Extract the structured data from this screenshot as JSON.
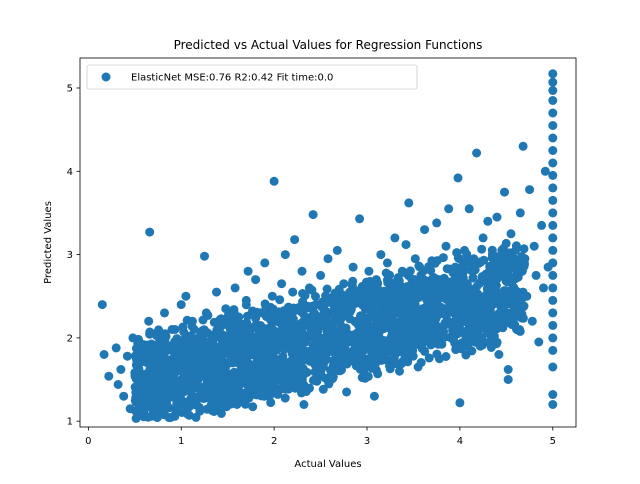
{
  "chart_data": {
    "type": "scatter",
    "title": "Predicted vs Actual Values for Regression Functions",
    "xlabel": "Actual Values",
    "ylabel": "Predicted Values",
    "xlim": [
      -0.09,
      5.25
    ],
    "ylim": [
      0.93,
      5.36
    ],
    "xticks": [
      0,
      1,
      2,
      3,
      4,
      5
    ],
    "yticks": [
      1,
      2,
      3,
      4,
      5
    ],
    "grid": false,
    "legend_position": "upper-left",
    "series": [
      {
        "name": "ElasticNet MSE:0.76 R2:0.42 Fit time:0.0",
        "color": "#1f77b4",
        "points": [
          [
            0.15,
            2.4
          ],
          [
            0.17,
            1.8
          ],
          [
            0.22,
            1.54
          ],
          [
            0.3,
            1.88
          ],
          [
            0.32,
            1.44
          ],
          [
            0.35,
            1.62
          ],
          [
            0.38,
            1.3
          ],
          [
            0.42,
            1.78
          ],
          [
            0.45,
            1.15
          ],
          [
            0.48,
            2.0
          ],
          [
            0.52,
            1.55
          ],
          [
            0.55,
            1.22
          ],
          [
            0.58,
            1.9
          ],
          [
            0.6,
            1.1
          ],
          [
            0.63,
            1.45
          ],
          [
            0.65,
            2.2
          ],
          [
            0.66,
            3.27
          ],
          [
            0.68,
            1.7
          ],
          [
            0.7,
            1.1
          ],
          [
            0.72,
            2.05
          ],
          [
            0.75,
            1.35
          ],
          [
            0.78,
            1.6
          ],
          [
            0.8,
            1.12
          ],
          [
            0.82,
            2.3
          ],
          [
            0.85,
            1.85
          ],
          [
            0.88,
            1.5
          ],
          [
            0.9,
            2.1
          ],
          [
            0.92,
            1.3
          ],
          [
            0.95,
            1.95
          ],
          [
            0.98,
            1.72
          ],
          [
            1.0,
            2.4
          ],
          [
            1.02,
            1.58
          ],
          [
            1.05,
            1.2
          ],
          [
            1.05,
            2.5
          ],
          [
            1.1,
            1.85
          ],
          [
            1.12,
            2.2
          ],
          [
            1.15,
            1.42
          ],
          [
            1.18,
            2.0
          ],
          [
            1.2,
            1.12
          ],
          [
            1.22,
            1.75
          ],
          [
            1.25,
            2.98
          ],
          [
            1.27,
            2.3
          ],
          [
            1.3,
            1.6
          ],
          [
            1.33,
            1.95
          ],
          [
            1.35,
            1.25
          ],
          [
            1.38,
            2.55
          ],
          [
            1.4,
            2.1
          ],
          [
            1.42,
            1.85
          ],
          [
            1.45,
            1.5
          ],
          [
            1.48,
            2.35
          ],
          [
            1.5,
            1.35
          ],
          [
            1.52,
            2.0
          ],
          [
            1.55,
            1.7
          ],
          [
            1.58,
            2.6
          ],
          [
            1.6,
            1.2
          ],
          [
            1.62,
            2.25
          ],
          [
            1.65,
            1.9
          ],
          [
            1.68,
            1.55
          ],
          [
            1.7,
            2.45
          ],
          [
            1.72,
            2.8
          ],
          [
            1.75,
            2.1
          ],
          [
            1.78,
            1.4
          ],
          [
            1.8,
            2.7
          ],
          [
            1.82,
            1.85
          ],
          [
            1.85,
            2.3
          ],
          [
            1.88,
            1.6
          ],
          [
            1.9,
            2.9
          ],
          [
            1.92,
            2.05
          ],
          [
            1.95,
            1.3
          ],
          [
            1.98,
            2.5
          ],
          [
            2.0,
            1.75
          ],
          [
            2.0,
            3.88
          ],
          [
            2.05,
            2.2
          ],
          [
            2.08,
            2.65
          ],
          [
            2.1,
            1.45
          ],
          [
            2.12,
            3.0
          ],
          [
            2.15,
            2.1
          ],
          [
            2.18,
            1.9
          ],
          [
            2.2,
            2.55
          ],
          [
            2.22,
            3.18
          ],
          [
            2.25,
            1.6
          ],
          [
            2.28,
            2.35
          ],
          [
            2.3,
            2.8
          ],
          [
            2.32,
            1.2
          ],
          [
            2.35,
            2.15
          ],
          [
            2.38,
            2.6
          ],
          [
            2.4,
            1.85
          ],
          [
            2.42,
            3.48
          ],
          [
            2.45,
            2.4
          ],
          [
            2.48,
            2.0
          ],
          [
            2.5,
            2.75
          ],
          [
            2.52,
            1.7
          ],
          [
            2.55,
            2.25
          ],
          [
            2.58,
            2.95
          ],
          [
            2.6,
            2.1
          ],
          [
            2.62,
            1.55
          ],
          [
            2.65,
            2.5
          ],
          [
            2.68,
            3.05
          ],
          [
            2.7,
            2.3
          ],
          [
            2.72,
            1.9
          ],
          [
            2.75,
            2.65
          ],
          [
            2.78,
            1.35
          ],
          [
            2.8,
            2.45
          ],
          [
            2.82,
            2.0
          ],
          [
            2.85,
            2.85
          ],
          [
            2.88,
            2.2
          ],
          [
            2.9,
            1.75
          ],
          [
            2.92,
            3.43
          ],
          [
            2.95,
            2.6
          ],
          [
            2.98,
            2.35
          ],
          [
            3.0,
            1.95
          ],
          [
            3.02,
            2.8
          ],
          [
            3.05,
            2.45
          ],
          [
            3.08,
            1.3
          ],
          [
            3.1,
            2.7
          ],
          [
            3.12,
            2.15
          ],
          [
            3.15,
            3.0
          ],
          [
            3.18,
            2.55
          ],
          [
            3.2,
            1.8
          ],
          [
            3.22,
            2.9
          ],
          [
            3.25,
            2.35
          ],
          [
            3.28,
            2.1
          ],
          [
            3.3,
            3.2
          ],
          [
            3.32,
            2.65
          ],
          [
            3.35,
            1.6
          ],
          [
            3.38,
            2.8
          ],
          [
            3.4,
            2.4
          ],
          [
            3.42,
            3.12
          ],
          [
            3.45,
            3.62
          ],
          [
            3.48,
            2.55
          ],
          [
            3.5,
            2.2
          ],
          [
            3.52,
            2.95
          ],
          [
            3.55,
            1.65
          ],
          [
            3.58,
            2.75
          ],
          [
            3.6,
            2.35
          ],
          [
            3.62,
            3.3
          ],
          [
            3.65,
            2.6
          ],
          [
            3.68,
            2.05
          ],
          [
            3.7,
            2.9
          ],
          [
            3.72,
            2.45
          ],
          [
            3.75,
            3.38
          ],
          [
            3.78,
            1.75
          ],
          [
            3.8,
            2.7
          ],
          [
            3.82,
            2.3
          ],
          [
            3.85,
            3.1
          ],
          [
            3.88,
            3.55
          ],
          [
            3.9,
            2.55
          ],
          [
            3.92,
            2.0
          ],
          [
            3.95,
            2.85
          ],
          [
            3.98,
            3.92
          ],
          [
            4.0,
            1.22
          ],
          [
            4.02,
            2.4
          ],
          [
            4.05,
            3.05
          ],
          [
            4.08,
            2.65
          ],
          [
            4.1,
            3.55
          ],
          [
            4.12,
            2.2
          ],
          [
            4.15,
            2.95
          ],
          [
            4.18,
            4.22
          ],
          [
            4.2,
            2.5
          ],
          [
            4.22,
            1.9
          ],
          [
            4.25,
            3.2
          ],
          [
            4.28,
            2.75
          ],
          [
            4.3,
            3.4
          ],
          [
            4.32,
            2.35
          ],
          [
            4.35,
            3.0
          ],
          [
            4.38,
            2.6
          ],
          [
            4.4,
            3.45
          ],
          [
            4.42,
            1.8
          ],
          [
            4.45,
            2.85
          ],
          [
            4.48,
            3.75
          ],
          [
            4.5,
            2.45
          ],
          [
            4.52,
            1.5
          ],
          [
            4.52,
            1.62
          ],
          [
            4.55,
            3.25
          ],
          [
            4.58,
            2.7
          ],
          [
            4.6,
            3.05
          ],
          [
            4.62,
            2.3
          ],
          [
            4.65,
            3.5
          ],
          [
            4.68,
            4.3
          ],
          [
            4.7,
            2.95
          ],
          [
            4.72,
            2.5
          ],
          [
            4.75,
            3.78
          ],
          [
            4.78,
            2.2
          ],
          [
            4.8,
            3.1
          ],
          [
            4.82,
            2.75
          ],
          [
            4.85,
            1.95
          ],
          [
            4.88,
            3.35
          ],
          [
            4.9,
            2.6
          ],
          [
            4.92,
            4.0
          ],
          [
            4.95,
            2.85
          ],
          [
            5.0,
            1.2
          ],
          [
            5.0,
            1.32
          ],
          [
            5.0,
            1.65
          ],
          [
            5.0,
            1.85
          ],
          [
            5.0,
            2.0
          ],
          [
            5.0,
            2.15
          ],
          [
            5.0,
            2.3
          ],
          [
            5.0,
            2.45
          ],
          [
            5.0,
            2.6
          ],
          [
            5.0,
            2.75
          ],
          [
            5.0,
            2.9
          ],
          [
            5.0,
            3.05
          ],
          [
            5.0,
            3.2
          ],
          [
            5.0,
            3.35
          ],
          [
            5.0,
            3.5
          ],
          [
            5.0,
            3.65
          ],
          [
            5.0,
            3.8
          ],
          [
            5.0,
            3.95
          ],
          [
            5.0,
            4.1
          ],
          [
            5.0,
            4.25
          ],
          [
            5.0,
            4.4
          ],
          [
            5.0,
            4.55
          ],
          [
            5.0,
            4.7
          ],
          [
            5.0,
            4.85
          ],
          [
            5.0,
            4.97
          ],
          [
            5.0,
            5.07
          ],
          [
            5.0,
            5.17
          ]
        ]
      }
    ]
  }
}
